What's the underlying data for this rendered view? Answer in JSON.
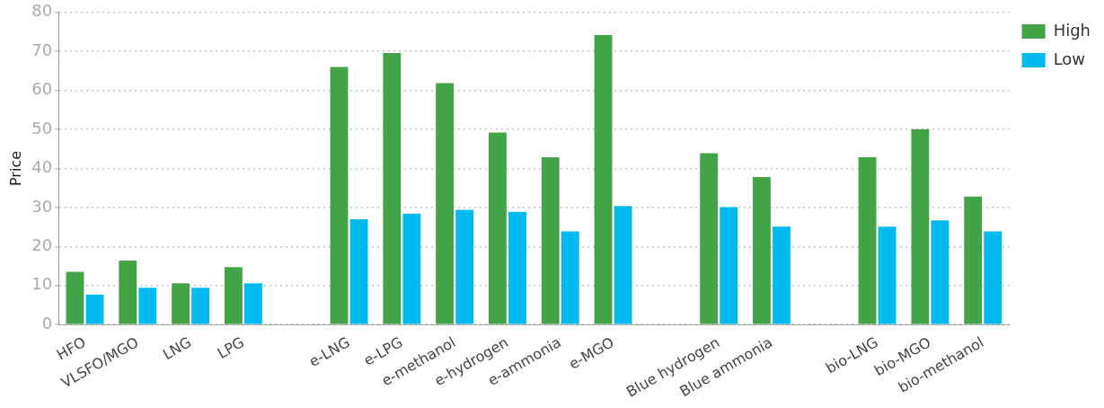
{
  "chart_data": {
    "type": "bar",
    "ylabel": "Price",
    "categories": [
      "HFO",
      "VLSFO/MGO",
      "LNG",
      "LPG",
      null,
      "e-LNG",
      "e-LPG",
      "e-methanol",
      "e-hydrogen",
      "e-ammonia",
      "e-MGO",
      null,
      "Blue hydrogen",
      "Blue ammonia",
      null,
      "bio-LNG",
      "bio-MGO",
      "bio-methanol"
    ],
    "series": [
      {
        "name": "High",
        "color": "#43a347",
        "values": [
          13.5,
          16.4,
          10.6,
          14.7,
          null,
          66.0,
          69.6,
          61.9,
          49.2,
          42.9,
          74.2,
          null,
          43.9,
          37.8,
          null,
          42.9,
          50.1,
          32.8
        ]
      },
      {
        "name": "Low",
        "color": "#00b9ef",
        "values": [
          7.7,
          9.4,
          9.4,
          10.6,
          null,
          27.0,
          28.4,
          29.4,
          28.9,
          23.9,
          30.4,
          null,
          30.1,
          25.1,
          null,
          25.1,
          26.7,
          23.9
        ]
      }
    ],
    "ylim": [
      0,
      80
    ],
    "yticks": [
      0,
      10,
      20,
      30,
      40,
      50,
      60,
      70,
      80
    ],
    "grid": "y",
    "legend": "top right"
  }
}
